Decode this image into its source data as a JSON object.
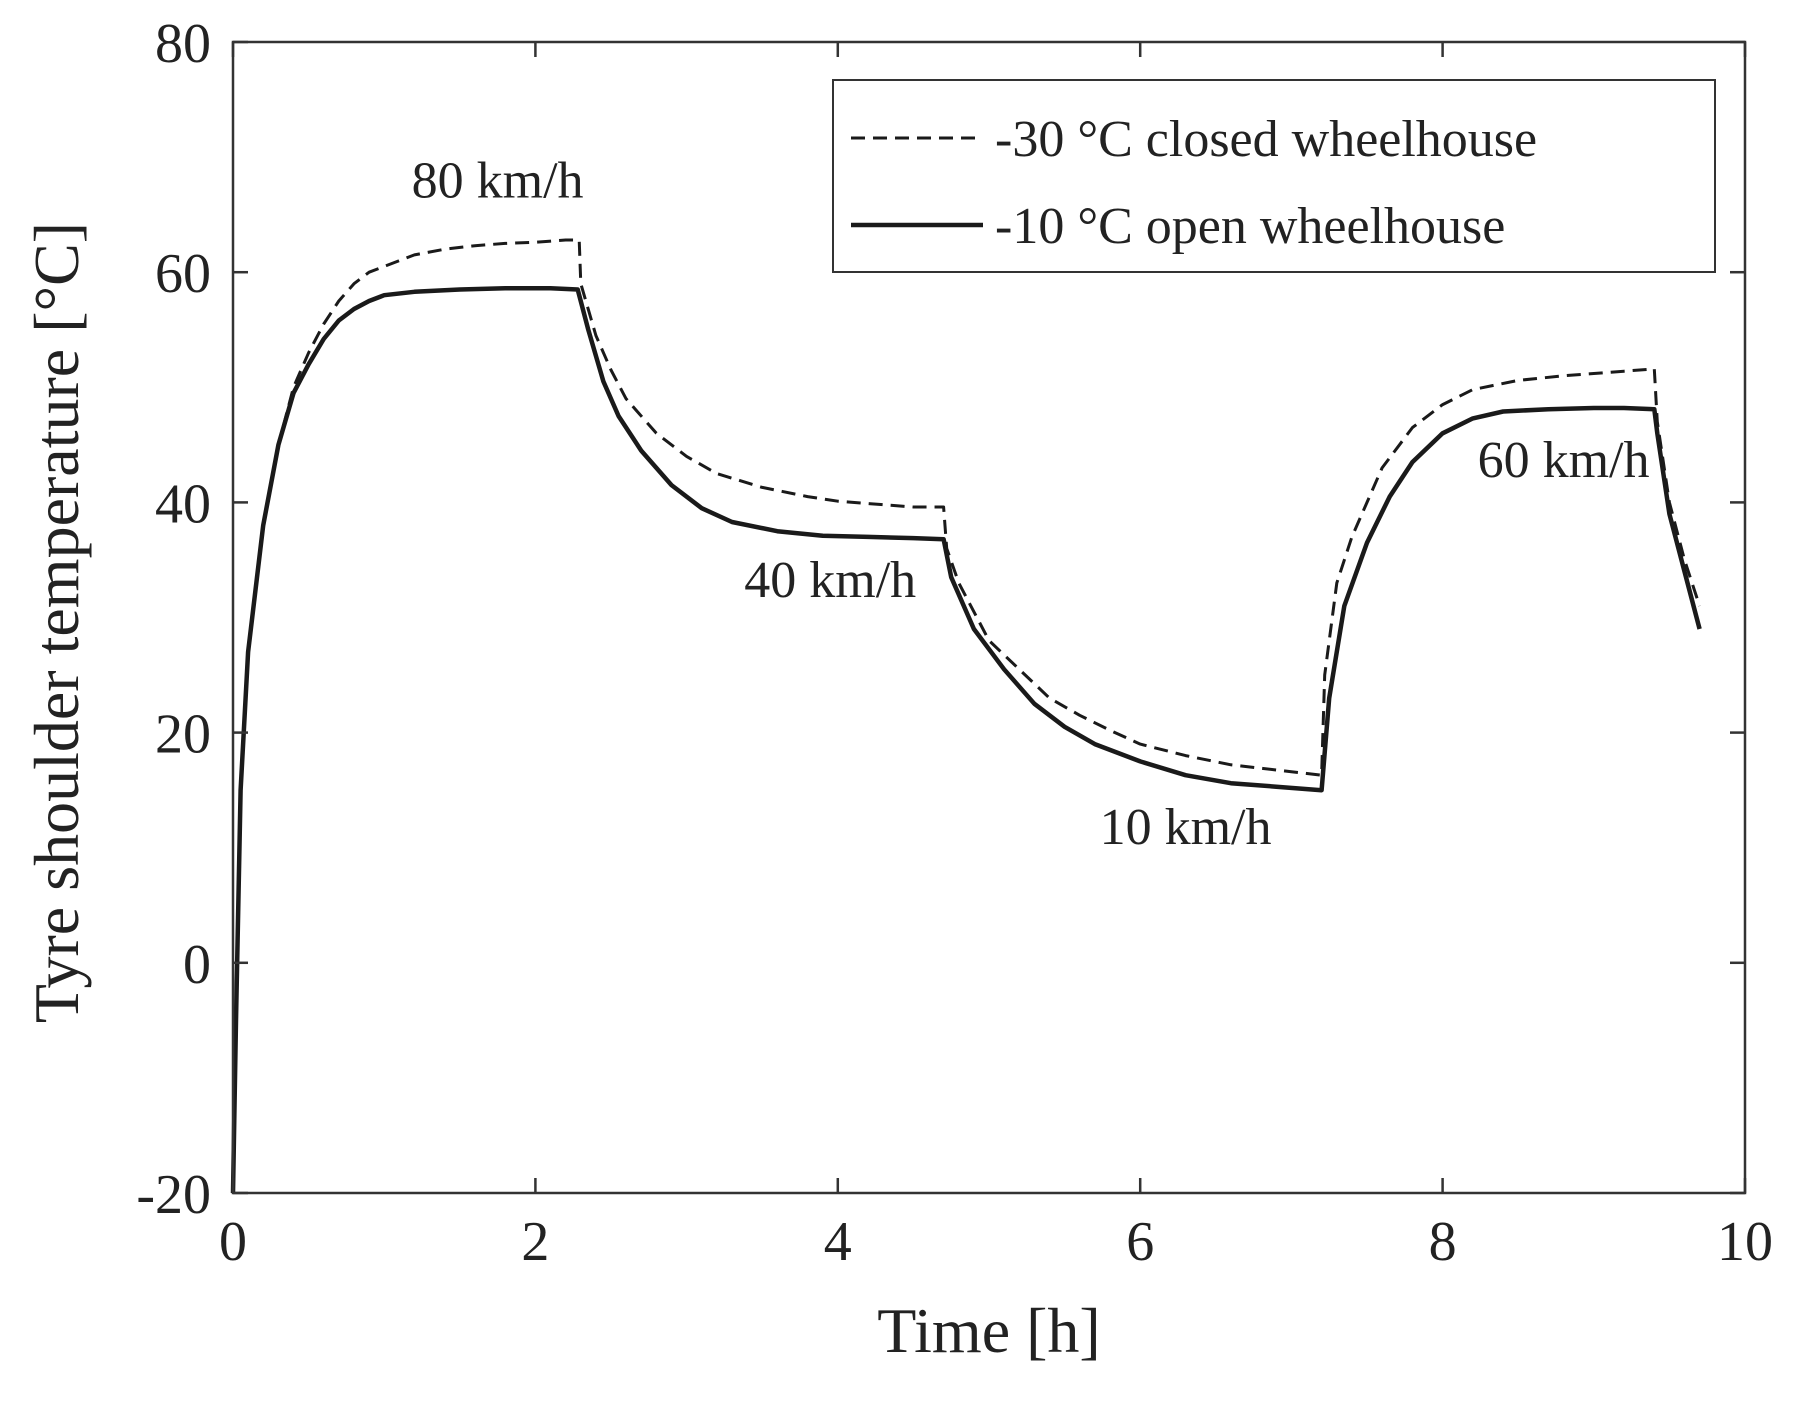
{
  "chart_data": {
    "type": "line",
    "xlabel": "Time [h]",
    "ylabel": "Tyre shoulder temperature [°C]",
    "xlim": [
      0,
      10
    ],
    "ylim": [
      -20,
      80
    ],
    "xticks": [
      0,
      2,
      4,
      6,
      8,
      10
    ],
    "xtick_labels": [
      "0",
      "2",
      "4",
      "6",
      "8",
      "10"
    ],
    "yticks": [
      -20,
      0,
      20,
      40,
      60,
      80
    ],
    "ytick_labels": [
      "-20",
      "0",
      "20",
      "40",
      "60",
      "80"
    ],
    "grid": false,
    "legend_position": "top-right",
    "series": [
      {
        "name": "-30 °C closed wheelhouse",
        "style": "dashed",
        "color": "#1a1a1a",
        "points": [
          [
            0,
            -20
          ],
          [
            0.02,
            -5
          ],
          [
            0.05,
            15
          ],
          [
            0.1,
            27
          ],
          [
            0.2,
            38
          ],
          [
            0.3,
            45
          ],
          [
            0.4,
            50
          ],
          [
            0.5,
            53
          ],
          [
            0.6,
            55.5
          ],
          [
            0.7,
            57.5
          ],
          [
            0.8,
            59
          ],
          [
            0.9,
            60
          ],
          [
            1.0,
            60.5
          ],
          [
            1.2,
            61.5
          ],
          [
            1.4,
            62
          ],
          [
            1.6,
            62.3
          ],
          [
            1.8,
            62.5
          ],
          [
            2.0,
            62.6
          ],
          [
            2.2,
            62.8
          ],
          [
            2.29,
            62.8
          ],
          [
            2.3,
            59
          ],
          [
            2.4,
            54.5
          ],
          [
            2.5,
            51.5
          ],
          [
            2.6,
            49
          ],
          [
            2.8,
            46
          ],
          [
            3.0,
            44
          ],
          [
            3.2,
            42.5
          ],
          [
            3.5,
            41.3
          ],
          [
            3.8,
            40.5
          ],
          [
            4.0,
            40.1
          ],
          [
            4.3,
            39.8
          ],
          [
            4.5,
            39.6
          ],
          [
            4.7,
            39.6
          ],
          [
            4.72,
            36
          ],
          [
            4.8,
            33
          ],
          [
            5.0,
            28
          ],
          [
            5.2,
            25.5
          ],
          [
            5.4,
            23
          ],
          [
            5.6,
            21.5
          ],
          [
            5.8,
            20.2
          ],
          [
            6.0,
            19
          ],
          [
            6.3,
            18
          ],
          [
            6.6,
            17.2
          ],
          [
            7.0,
            16.6
          ],
          [
            7.2,
            16.3
          ],
          [
            7.22,
            25
          ],
          [
            7.3,
            33
          ],
          [
            7.4,
            37
          ],
          [
            7.5,
            40
          ],
          [
            7.6,
            43
          ],
          [
            7.8,
            46.5
          ],
          [
            8.0,
            48.5
          ],
          [
            8.2,
            49.8
          ],
          [
            8.5,
            50.6
          ],
          [
            8.8,
            51
          ],
          [
            9.0,
            51.2
          ],
          [
            9.2,
            51.4
          ],
          [
            9.4,
            51.6
          ],
          [
            9.42,
            47
          ],
          [
            9.5,
            40
          ],
          [
            9.6,
            35
          ],
          [
            9.7,
            31
          ]
        ]
      },
      {
        "name": "-10 °C open wheelhouse",
        "style": "solid",
        "color": "#1a1a1a",
        "points": [
          [
            0,
            -20
          ],
          [
            0.02,
            -5
          ],
          [
            0.05,
            15
          ],
          [
            0.1,
            27
          ],
          [
            0.2,
            38
          ],
          [
            0.3,
            45
          ],
          [
            0.4,
            49.5
          ],
          [
            0.5,
            52
          ],
          [
            0.6,
            54.2
          ],
          [
            0.7,
            55.8
          ],
          [
            0.8,
            56.8
          ],
          [
            0.9,
            57.5
          ],
          [
            1.0,
            58
          ],
          [
            1.2,
            58.3
          ],
          [
            1.5,
            58.5
          ],
          [
            1.8,
            58.6
          ],
          [
            2.1,
            58.6
          ],
          [
            2.28,
            58.5
          ],
          [
            2.35,
            55
          ],
          [
            2.45,
            50.5
          ],
          [
            2.55,
            47.5
          ],
          [
            2.7,
            44.5
          ],
          [
            2.9,
            41.5
          ],
          [
            3.1,
            39.5
          ],
          [
            3.3,
            38.3
          ],
          [
            3.6,
            37.5
          ],
          [
            3.9,
            37.1
          ],
          [
            4.2,
            37
          ],
          [
            4.5,
            36.9
          ],
          [
            4.7,
            36.8
          ],
          [
            4.75,
            33.5
          ],
          [
            4.9,
            29
          ],
          [
            5.1,
            25.5
          ],
          [
            5.3,
            22.5
          ],
          [
            5.5,
            20.5
          ],
          [
            5.7,
            19
          ],
          [
            6.0,
            17.5
          ],
          [
            6.3,
            16.3
          ],
          [
            6.6,
            15.6
          ],
          [
            6.9,
            15.3
          ],
          [
            7.2,
            15
          ],
          [
            7.25,
            23
          ],
          [
            7.35,
            31
          ],
          [
            7.5,
            36.5
          ],
          [
            7.65,
            40.5
          ],
          [
            7.8,
            43.5
          ],
          [
            8.0,
            46
          ],
          [
            8.2,
            47.3
          ],
          [
            8.4,
            47.9
          ],
          [
            8.7,
            48.1
          ],
          [
            9.0,
            48.2
          ],
          [
            9.2,
            48.2
          ],
          [
            9.4,
            48.1
          ],
          [
            9.42,
            46
          ],
          [
            9.5,
            39
          ],
          [
            9.6,
            34
          ],
          [
            9.7,
            29
          ]
        ]
      }
    ],
    "annotations": [
      {
        "text": "80 km/h",
        "x": 1.75,
        "y": 66.5
      },
      {
        "text": "40 km/h",
        "x": 3.95,
        "y": 31.8
      },
      {
        "text": "10 km/h",
        "x": 6.3,
        "y": 10.3
      },
      {
        "text": "60 km/h",
        "x": 8.8,
        "y": 42.2
      }
    ]
  }
}
